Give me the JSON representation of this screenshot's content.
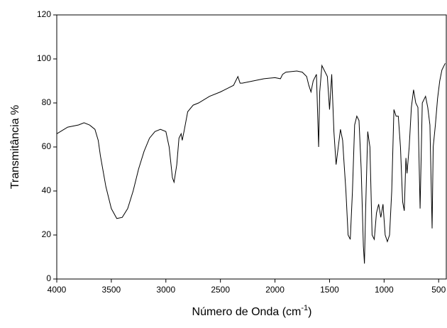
{
  "chart_data": {
    "type": "line",
    "ylabel": "Transmitância %",
    "xlabel": {
      "text": "Número de Onda (cm",
      "sup": "-1",
      "tail": ")"
    },
    "xlim": [
      4000,
      430
    ],
    "ylim": [
      0,
      120
    ],
    "xticks": [
      4000,
      3500,
      3000,
      2500,
      2000,
      1500,
      1000,
      500
    ],
    "yticks": [
      0,
      20,
      40,
      60,
      80,
      100,
      120
    ],
    "series": [
      {
        "color": "#000000",
        "x": [
          4000,
          3900,
          3800,
          3750,
          3700,
          3650,
          3620,
          3600,
          3550,
          3500,
          3450,
          3400,
          3350,
          3300,
          3250,
          3200,
          3150,
          3100,
          3050,
          3000,
          2970,
          2940,
          2925,
          2900,
          2880,
          2860,
          2850,
          2830,
          2800,
          2750,
          2700,
          2600,
          2500,
          2420,
          2380,
          2360,
          2340,
          2320,
          2300,
          2200,
          2100,
          2000,
          1950,
          1930,
          1900,
          1800,
          1750,
          1710,
          1690,
          1670,
          1650,
          1620,
          1600,
          1590,
          1570,
          1550,
          1520,
          1500,
          1480,
          1460,
          1440,
          1420,
          1400,
          1380,
          1370,
          1350,
          1330,
          1310,
          1290,
          1270,
          1250,
          1230,
          1210,
          1190,
          1180,
          1170,
          1150,
          1130,
          1110,
          1090,
          1070,
          1050,
          1030,
          1010,
          990,
          970,
          950,
          930,
          910,
          890,
          870,
          850,
          830,
          815,
          800,
          790,
          770,
          750,
          730,
          710,
          690,
          670,
          650,
          620,
          600,
          580,
          560,
          550,
          530,
          510,
          490,
          470,
          450,
          440
        ],
        "values": [
          66,
          69,
          70,
          71,
          70,
          68,
          63,
          56,
          42,
          32,
          27.5,
          28,
          32,
          40,
          50,
          58,
          64,
          67,
          68,
          67,
          60,
          46,
          44,
          52,
          64,
          66,
          63,
          68,
          76,
          79,
          80,
          83,
          85,
          87,
          88,
          90,
          92,
          89,
          89,
          90,
          91,
          91.5,
          91,
          93,
          94,
          94.5,
          94,
          92,
          88,
          85,
          90,
          93,
          60,
          85,
          97,
          95,
          92,
          77,
          93,
          67,
          52,
          60,
          68,
          63,
          55,
          40,
          20,
          18,
          40,
          70,
          74,
          72,
          50,
          15,
          7,
          30,
          67,
          60,
          20,
          18,
          30,
          34,
          28,
          34,
          20,
          17,
          20,
          40,
          77,
          74,
          74,
          60,
          35,
          31,
          55,
          48,
          60,
          78,
          86,
          80,
          78,
          32,
          80,
          83,
          78,
          70,
          23,
          60,
          70,
          82,
          90,
          95,
          97,
          98
        ]
      }
    ]
  }
}
